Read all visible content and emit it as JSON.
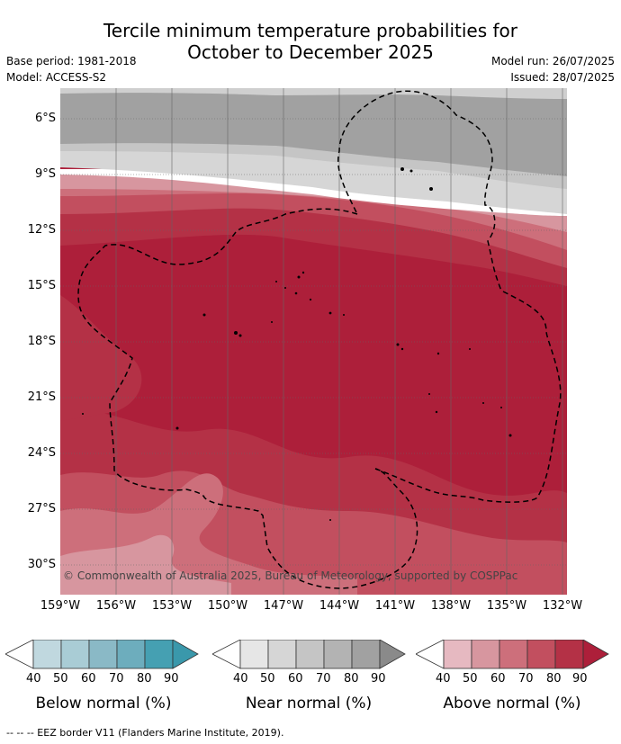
{
  "title_line1": "Tercile minimum temperature probabilities for",
  "title_line2": "October to December 2025",
  "meta": {
    "base_period": "Base period: 1981-2018",
    "model": "Model: ACCESS-S2",
    "model_run": "Model run: 26/07/2025",
    "issued": "Issued: 28/07/2025"
  },
  "map": {
    "lat_labels": [
      "6°S",
      "9°S",
      "12°S",
      "15°S",
      "18°S",
      "21°S",
      "24°S",
      "27°S",
      "30°S"
    ],
    "lon_labels": [
      "159°W",
      "156°W",
      "153°W",
      "150°W",
      "147°W",
      "144°W",
      "141°W",
      "138°W",
      "135°W",
      "132°W"
    ],
    "copyright": "© Commonwealth of Australia 2025, Bureau of Meteorology, supported by COSPPac"
  },
  "colorbars": [
    {
      "title": "Below normal (%)",
      "ticks": [
        "40",
        "50",
        "60",
        "70",
        "80",
        "90"
      ],
      "colors": [
        "#ffffff",
        "#c0d8df",
        "#a9ccd5",
        "#8ab9c6",
        "#6dadbd",
        "#45a0b2",
        "#3a98ab"
      ]
    },
    {
      "title": "Near normal (%)",
      "ticks": [
        "40",
        "50",
        "60",
        "70",
        "80",
        "90"
      ],
      "colors": [
        "#ffffff",
        "#e6e6e6",
        "#d6d6d6",
        "#c5c5c5",
        "#b3b3b3",
        "#a1a1a1",
        "#8a8a8a"
      ]
    },
    {
      "title": "Above normal (%)",
      "ticks": [
        "40",
        "50",
        "60",
        "70",
        "80",
        "90"
      ],
      "colors": [
        "#ffffff",
        "#e6b9c1",
        "#d7969f",
        "#cd6f7b",
        "#c24f5f",
        "#b43146",
        "#ad1f3a"
      ]
    }
  ],
  "footer": "-- -- -- EEZ border V11 (Flanders Marine Institute, 2019)."
}
